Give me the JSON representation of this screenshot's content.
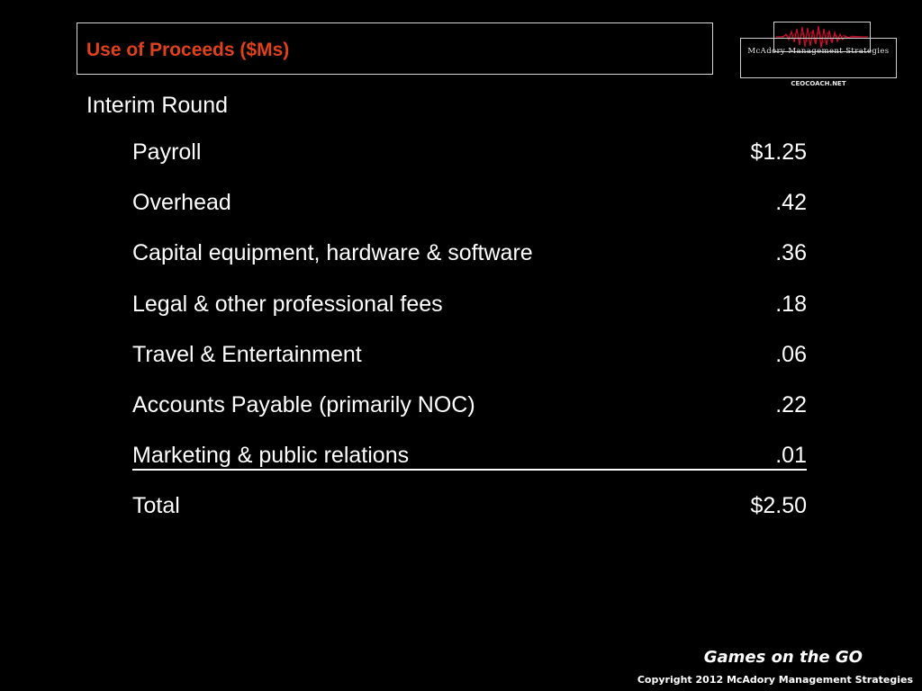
{
  "slide": {
    "title": "Use of Proceeds ($Ms)",
    "subtitle": "Interim Round"
  },
  "logo": {
    "name": "McAdory Management Strategies",
    "name_display": "McAdory Management Strategies",
    "site": "CEOCOACH.NET",
    "wave_color": "#c8102e"
  },
  "rows": [
    {
      "label": "Payroll",
      "value": "$1.25"
    },
    {
      "label": "Overhead",
      "value": ".42"
    },
    {
      "label": "Capital equipment, hardware & software",
      "value": ".36"
    },
    {
      "label": "Legal & other professional fees",
      "value": ".18"
    },
    {
      "label": "Travel & Entertainment",
      "value": ".06"
    },
    {
      "label": "Accounts Payable (primarily NOC)",
      "value": ".22"
    },
    {
      "label": "Marketing & public relations",
      "value": ".01"
    },
    {
      "label": "Total",
      "value": "$2.50"
    }
  ],
  "footer": {
    "brand": "Games on the GO",
    "copyright": "Copyright 2012 McAdory Management Strategies"
  },
  "colors": {
    "background": "#000000",
    "title": "#e0411b",
    "text": "#ffffff"
  }
}
